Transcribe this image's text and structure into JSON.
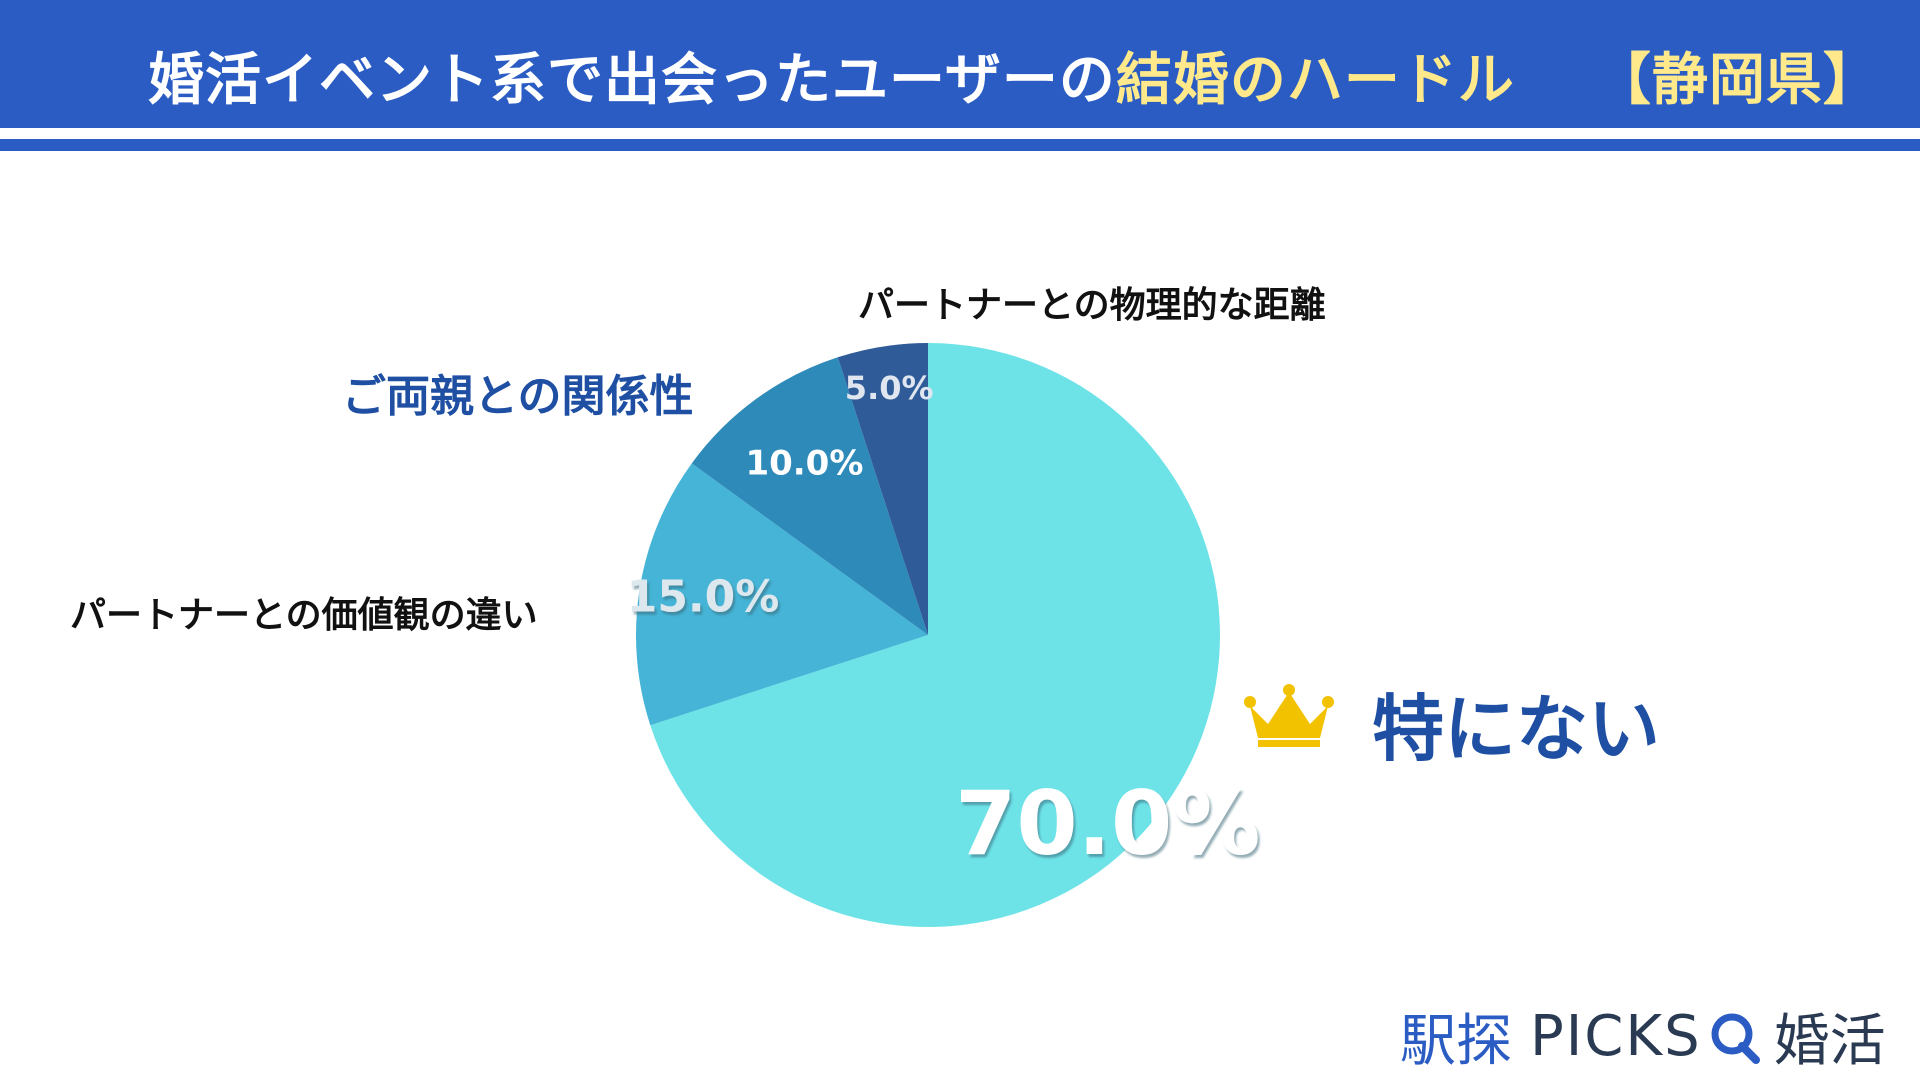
{
  "header": {
    "title_main": "婚活イベント系で出会ったユーザーの",
    "title_highlight": "結婚のハードル",
    "title_pref": "【静岡県】"
  },
  "chart_data": {
    "type": "pie",
    "title": "婚活イベント系で出会ったユーザーの結婚のハードル 【静岡県】",
    "categories": [
      "特にない",
      "パートナーとの価値観の違い",
      "ご両親との関係性",
      "パートナーとの物理的な距離"
    ],
    "values": [
      70.0,
      15.0,
      10.0,
      5.0
    ],
    "value_labels": [
      "70.0%",
      "15.0%",
      "10.0%",
      "5.0%"
    ],
    "colors": [
      "#6de3e8",
      "#45b4d6",
      "#2e8ab9",
      "#2f5c98"
    ],
    "start": "12 o'clock",
    "direction": "clockwise"
  },
  "labels": {
    "distance": "パートナーとの物理的な距離",
    "parents": "ご両親との関係性",
    "values": "パートナーとの価値観の違い",
    "winner": "特にない"
  },
  "icons": {
    "crown": "crown-icon"
  },
  "logo": {
    "eki": "駅探",
    "picks": "PICKS",
    "konkatsu": "婚活"
  },
  "colors": {
    "header": "#2a5cc4",
    "accent_text": "#ffe98a",
    "blue_text": "#1e4fa3",
    "crown": "#f2c200"
  }
}
